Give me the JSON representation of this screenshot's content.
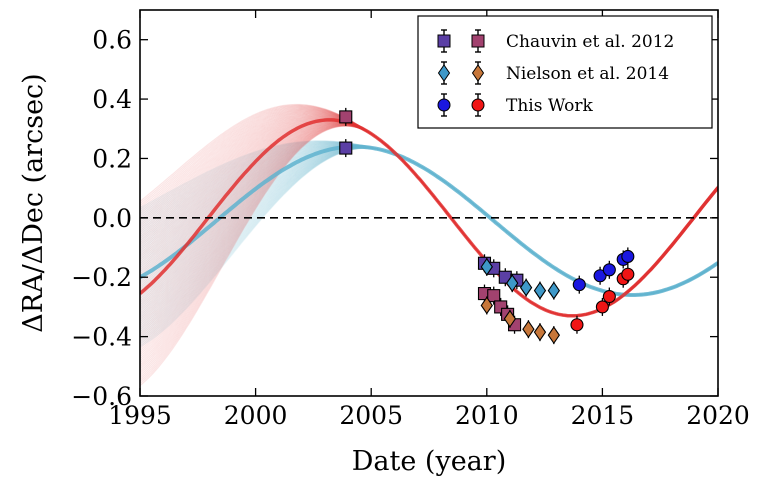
{
  "chart_data": {
    "type": "scatter",
    "xlabel": "Date (year)",
    "ylabel": "ΔRA/ΔDec (arcsec)",
    "xlim": [
      1995,
      2020
    ],
    "ylim": [
      -0.6,
      0.7
    ],
    "x_ticks": [
      1995,
      2000,
      2005,
      2010,
      2015,
      2020
    ],
    "x_tick_labels": [
      "1995",
      "2000",
      "2005",
      "2010",
      "2015",
      "2020"
    ],
    "y_ticks": [
      -0.6,
      -0.4,
      -0.2,
      0.0,
      0.2,
      0.4,
      0.6
    ],
    "y_tick_labels": [
      "−0.6",
      "−0.4",
      "−0.2",
      "0.0",
      "0.2",
      "0.4",
      "0.6"
    ],
    "zero_line": {
      "y": 0.0,
      "style": "dashed"
    },
    "grid": false,
    "legend_position": "top-right",
    "legend": [
      {
        "label": "Chauvin et al. 2012",
        "marker": "square",
        "colors": [
          "#5b3fa5",
          "#a2426f"
        ]
      },
      {
        "label": "Nielson et al. 2014",
        "marker": "diamond",
        "colors": [
          "#3e98c8",
          "#c7773a"
        ]
      },
      {
        "label": "This Work",
        "marker": "circle",
        "colors": [
          "#1a17e0",
          "#f01515"
        ]
      }
    ],
    "colors": {
      "ra_band": "#e24a4a",
      "dec_band": "#79c2d8",
      "ra_fit": "#e03030",
      "dec_fit": "#5fb3cf"
    },
    "series": [
      {
        "name": "Chauvin et al. 2012",
        "marker": "square",
        "ra": [
          {
            "x": 2003.9,
            "y": 0.34
          },
          {
            "x": 2009.9,
            "y": -0.255
          },
          {
            "x": 2010.3,
            "y": -0.262
          },
          {
            "x": 2010.6,
            "y": -0.3
          },
          {
            "x": 2010.9,
            "y": -0.325
          },
          {
            "x": 2011.2,
            "y": -0.36
          }
        ],
        "dec": [
          {
            "x": 2003.9,
            "y": 0.235
          },
          {
            "x": 2009.9,
            "y": -0.153
          },
          {
            "x": 2010.3,
            "y": -0.17
          },
          {
            "x": 2010.8,
            "y": -0.2
          },
          {
            "x": 2011.3,
            "y": -0.21
          }
        ]
      },
      {
        "name": "Nielson et al. 2014",
        "marker": "diamond",
        "ra": [
          {
            "x": 2010.0,
            "y": -0.295
          },
          {
            "x": 2011.0,
            "y": -0.34
          },
          {
            "x": 2011.8,
            "y": -0.375
          },
          {
            "x": 2012.3,
            "y": -0.385
          },
          {
            "x": 2012.9,
            "y": -0.395
          }
        ],
        "dec": [
          {
            "x": 2010.0,
            "y": -0.165
          },
          {
            "x": 2011.1,
            "y": -0.22
          },
          {
            "x": 2011.7,
            "y": -0.235
          },
          {
            "x": 2012.3,
            "y": -0.245
          },
          {
            "x": 2012.9,
            "y": -0.245
          }
        ]
      },
      {
        "name": "This Work",
        "marker": "circle",
        "ra": [
          {
            "x": 2013.9,
            "y": -0.36
          },
          {
            "x": 2015.0,
            "y": -0.3
          },
          {
            "x": 2015.3,
            "y": -0.265
          },
          {
            "x": 2015.9,
            "y": -0.205
          },
          {
            "x": 2016.1,
            "y": -0.19
          }
        ],
        "dec": [
          {
            "x": 2014.0,
            "y": -0.225
          },
          {
            "x": 2014.9,
            "y": -0.195
          },
          {
            "x": 2015.3,
            "y": -0.175
          },
          {
            "x": 2015.9,
            "y": -0.14
          },
          {
            "x": 2016.1,
            "y": -0.13
          }
        ]
      }
    ]
  }
}
